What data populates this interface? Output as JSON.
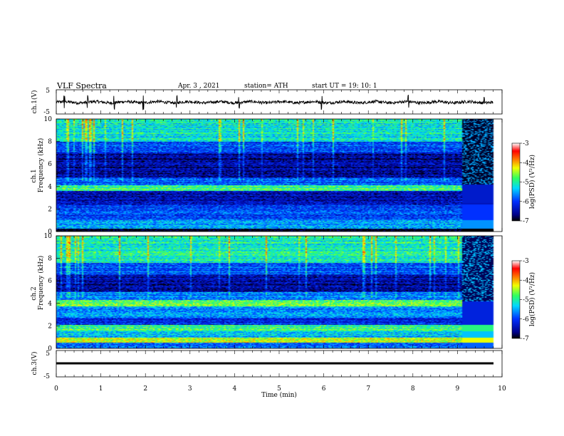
{
  "header": {
    "title": "VLF  Spectra",
    "date": "Apr. 3  , 2021",
    "station": "station= ATH",
    "start_ut": "start  UT  =    19: 10: 1"
  },
  "chart_data": [
    {
      "type": "line",
      "panel": "ch1-waveform",
      "ylabel": "ch.1(V)",
      "ylim": [
        -5,
        5
      ],
      "yticks": [
        "5",
        "-5"
      ],
      "xlim": [
        0,
        10
      ],
      "grid": false,
      "color": "#000000",
      "description_values": {
        "baseline_v": 0,
        "spike_times_min": [
          0.18,
          0.7,
          1.3,
          1.95,
          2.7,
          4.1,
          5.95,
          7.9,
          9.6
        ]
      }
    },
    {
      "type": "heatmap",
      "panel": "ch1-spectrogram",
      "ylabel": "ch.1\nFrequency  (kHz)",
      "ylim": [
        0,
        10
      ],
      "yticks": [
        "0",
        "2",
        "4",
        "6",
        "8",
        "10"
      ],
      "xlim": [
        0,
        10
      ],
      "data_end_min": 9.8,
      "colorbar": {
        "label": "log(PSD) (V²/Hz)",
        "range": [
          -7,
          -3
        ],
        "ticks": [
          "-3",
          "-4",
          "-5",
          "-6",
          "-7"
        ]
      },
      "bands": [
        {
          "f_kHz": [
            8.0,
            10.0
          ],
          "level": -5.2
        },
        {
          "f_kHz": [
            7.0,
            8.0
          ],
          "level": -5.9
        },
        {
          "f_kHz": [
            4.8,
            7.0
          ],
          "level": -6.6
        },
        {
          "f_kHz": [
            4.1,
            4.8
          ],
          "level": -5.9
        },
        {
          "f_kHz": [
            3.6,
            4.1
          ],
          "level": -4.9
        },
        {
          "f_kHz": [
            2.4,
            3.6
          ],
          "level": -6.4
        },
        {
          "f_kHz": [
            1.0,
            2.4
          ],
          "level": -6.0
        },
        {
          "f_kHz": [
            0.2,
            1.0
          ],
          "level": -5.6
        },
        {
          "f_kHz": [
            0.0,
            0.2
          ],
          "level": -7.0
        }
      ],
      "late_segment": {
        "from_min": 9.1,
        "level": -6.9
      }
    },
    {
      "type": "heatmap",
      "panel": "ch2-spectrogram",
      "ylabel": "ch.2\nFrequency  (kHz)",
      "ylim": [
        0,
        10
      ],
      "yticks": [
        "0",
        "2",
        "4",
        "6",
        "8",
        "10"
      ],
      "xlim": [
        0,
        10
      ],
      "data_end_min": 9.8,
      "colorbar": {
        "label": "log(PSD) (V²/Hz)",
        "range": [
          -7,
          -3
        ],
        "ticks": [
          "-3",
          "-4",
          "-5",
          "-6",
          "-7"
        ]
      },
      "bands": [
        {
          "f_kHz": [
            7.6,
            10.0
          ],
          "level": -5.1
        },
        {
          "f_kHz": [
            6.6,
            7.6
          ],
          "level": -5.8
        },
        {
          "f_kHz": [
            5.0,
            6.6
          ],
          "level": -6.5
        },
        {
          "f_kHz": [
            4.3,
            5.0
          ],
          "level": -5.7
        },
        {
          "f_kHz": [
            3.7,
            4.3
          ],
          "level": -4.8
        },
        {
          "f_kHz": [
            2.7,
            3.7
          ],
          "level": -5.6
        },
        {
          "f_kHz": [
            2.1,
            2.7
          ],
          "level": -6.2
        },
        {
          "f_kHz": [
            1.5,
            2.1
          ],
          "level": -4.9
        },
        {
          "f_kHz": [
            0.9,
            1.5
          ],
          "level": -5.4
        },
        {
          "f_kHz": [
            0.5,
            0.9
          ],
          "level": -4.3
        },
        {
          "f_kHz": [
            0.0,
            0.5
          ],
          "level": -5.8
        }
      ],
      "late_segment": {
        "from_min": 9.1,
        "level": -6.8
      }
    },
    {
      "type": "line",
      "panel": "ch3-waveform",
      "ylabel": "ch.3(V)",
      "ylim": [
        -5,
        5
      ],
      "yticks": [
        "5",
        "-5"
      ],
      "xlim": [
        0,
        10
      ],
      "grid": false,
      "color": "#000000",
      "description_values": {
        "baseline_v": 0.2
      }
    }
  ],
  "xaxis": {
    "label": "Time  (min)",
    "ticks": [
      "0",
      "1",
      "2",
      "3",
      "4",
      "5",
      "6",
      "7",
      "8",
      "9",
      "10"
    ]
  }
}
